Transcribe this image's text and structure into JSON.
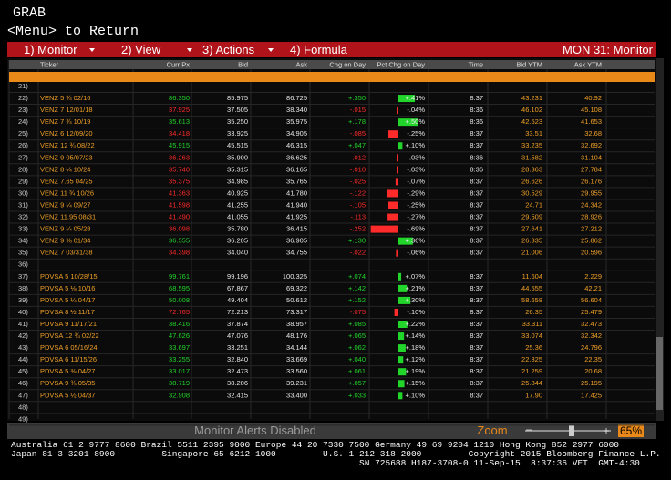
{
  "header": {
    "title": "GRAB",
    "subtitle": "<Menu> to Return"
  },
  "menu": {
    "items": [
      "1) Monitor",
      "2) View",
      "3) Actions",
      "4) Formula"
    ],
    "right": "MON 31: Monitor"
  },
  "table": {
    "columns": [
      "Ticker",
      "Curr Px",
      "Bid",
      "Ask",
      "Chg on Day",
      "Pct Chg on Day",
      "Time",
      "Bid YTM",
      "Ask YTM"
    ],
    "rows": [
      [
        "21)"
      ],
      [
        "22)",
        "VENZ 5 ¾ 02/16",
        "86.350",
        "85.975",
        "86.725",
        "+.350",
        "+.41%",
        "8:37",
        "43.231",
        "40.92"
      ],
      [
        "23)",
        "VENZ 7 12/01/18",
        "37.925",
        "37.505",
        "38.340",
        "-.015",
        "-.04%",
        "8:36",
        "46.102",
        "45.108"
      ],
      [
        "24)",
        "VENZ 7 ¾ 10/19",
        "35.613",
        "35.250",
        "35.975",
        "+.178",
        "+.50%",
        "8:36",
        "42.523",
        "41.653"
      ],
      [
        "25)",
        "VENZ 6 12/09/20",
        "34.418",
        "33.925",
        "34.905",
        "-.085",
        "-.25%",
        "8:37",
        "33.51",
        "32.68"
      ],
      [
        "26)",
        "VENZ 12 ¾ 08/22",
        "45.915",
        "45.515",
        "46.315",
        "+.047",
        "+.10%",
        "8:37",
        "33.235",
        "32.692"
      ],
      [
        "27)",
        "VENZ 9 05/07/23",
        "36.263",
        "35.900",
        "36.625",
        "-.012",
        "-.03%",
        "8:36",
        "31.582",
        "31.104"
      ],
      [
        "28)",
        "VENZ 8 ¼ 10/24",
        "35.740",
        "35.315",
        "36.165",
        "-.010",
        "-.03%",
        "8:36",
        "28.363",
        "27.784"
      ],
      [
        "29)",
        "VENZ 7.65 04/25",
        "35.375",
        "34.985",
        "35.765",
        "-.025",
        "-.07%",
        "8:37",
        "26.626",
        "26.176"
      ],
      [
        "30)",
        "VENZ 11 ¾ 10/26",
        "41.363",
        "40.925",
        "41.780",
        "-.122",
        "-.29%",
        "8:37",
        "30.529",
        "29.955"
      ],
      [
        "31)",
        "VENZ 9 ¼ 09/27",
        "41.598",
        "41.255",
        "41.940",
        "-.105",
        "-.25%",
        "8:37",
        "24.71",
        "24.342"
      ],
      [
        "32)",
        "VENZ 11.95 08/31",
        "41.490",
        "41.055",
        "41.925",
        "-.113",
        "-.27%",
        "8:37",
        "29.509",
        "28.926"
      ],
      [
        "33)",
        "VENZ 9 ¼ 05/28",
        "36.098",
        "35.780",
        "36.415",
        "-.252",
        "-.69%",
        "8:37",
        "27.641",
        "27.212"
      ],
      [
        "34)",
        "VENZ 9 ⅜ 01/34",
        "36.555",
        "36.205",
        "36.905",
        "+.130",
        "+.36%",
        "8:37",
        "26.335",
        "25.862"
      ],
      [
        "35)",
        "VENZ 7 03/31/38",
        "34.398",
        "34.040",
        "34.755",
        "-.022",
        "-.06%",
        "8:37",
        "21.006",
        "20.596"
      ],
      [
        "36)"
      ],
      [
        "37)",
        "PDVSA 5 10/28/15",
        "99.761",
        "99.196",
        "100.325",
        "+.074",
        "+.07%",
        "8:37",
        "11.604",
        "2.229"
      ],
      [
        "38)",
        "PDVSA 5 ⅛ 10/16",
        "68.595",
        "67.867",
        "69.322",
        "+.142",
        "+.21%",
        "8:37",
        "44.555",
        "42.21"
      ],
      [
        "39)",
        "PDVSA 5 ¼ 04/17",
        "50.008",
        "49.404",
        "50.612",
        "+.152",
        "+.30%",
        "8:37",
        "58.658",
        "56.604"
      ],
      [
        "40)",
        "PDVSA 8 ½ 11/17",
        "72.765",
        "72.213",
        "73.317",
        "-.075",
        "-.10%",
        "8:37",
        "26.35",
        "25.479"
      ],
      [
        "41)",
        "PDVSA 9 11/17/21",
        "38.416",
        "37.874",
        "38.957",
        "+.085",
        "+.22%",
        "8:37",
        "33.311",
        "32.473"
      ],
      [
        "42)",
        "PDVSA 12 ¾ 02/22",
        "47.626",
        "47.076",
        "48.176",
        "+.065",
        "+.14%",
        "8:37",
        "33.074",
        "32.342"
      ],
      [
        "43)",
        "PDVSA 6 05/16/24",
        "33.697",
        "33.251",
        "34.144",
        "+.062",
        "+.18%",
        "8:37",
        "25.36",
        "24.796"
      ],
      [
        "44)",
        "PDVSA 6 11/15/26",
        "33.255",
        "32.840",
        "33.669",
        "+.040",
        "+.12%",
        "8:37",
        "22.825",
        "22.35"
      ],
      [
        "45)",
        "PDVSA 5 ⅜ 04/27",
        "33.017",
        "32.473",
        "33.560",
        "+.061",
        "+.19%",
        "8:37",
        "21.259",
        "20.68"
      ],
      [
        "46)",
        "PDVSA 9 ¾ 05/35",
        "38.719",
        "38.206",
        "39.231",
        "+.057",
        "+.15%",
        "8:37",
        "25.844",
        "25.195"
      ],
      [
        "47)",
        "PDVSA 5 ½ 04/37",
        "32.908",
        "32.415",
        "33.400",
        "+.033",
        "+.10%",
        "8:37",
        "17.90",
        "17.425"
      ],
      [
        "48)"
      ],
      [
        "49)"
      ]
    ]
  },
  "status": {
    "alerts": "Monitor Alerts Disabled",
    "zoom": "Zoom",
    "zoom_level": "65%"
  },
  "footer": {
    "lines": [
      "Australia 61 2 9777 8600 Brazil 5511 2395 9000 Europe 44 20 7330 7500 Germany 49 69 9204 1210 Hong Kong 852 2977 6000",
      "Japan 81 3 3201 8900         Singapore 65 6212 1000         U.S. 1 212 318 2000         Copyright 2015 Bloomberg Finance L.P.",
      "SN 725688 H187-3708-0 11-Sep-15  8:37:36 VET  GMT-4:30"
    ]
  }
}
